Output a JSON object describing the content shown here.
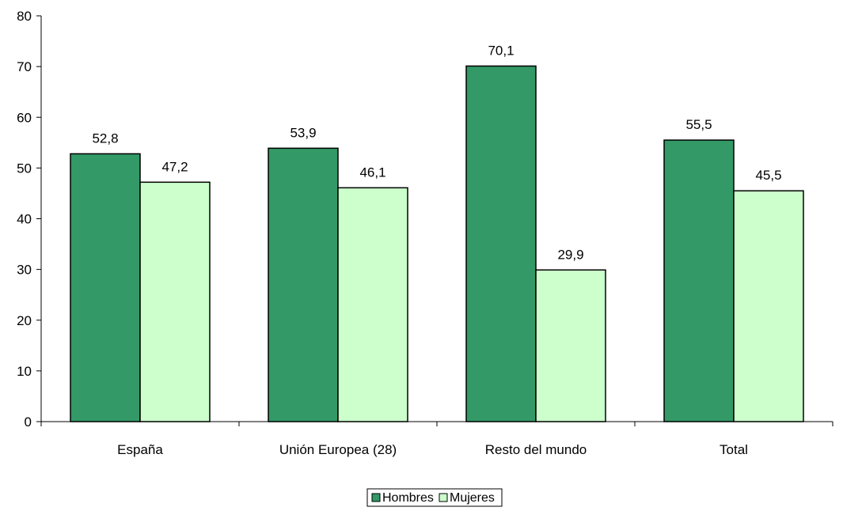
{
  "chart_data": {
    "type": "bar",
    "categories": [
      "España",
      "Unión Europea (28)",
      "Resto del mundo",
      "Total"
    ],
    "series": [
      {
        "name": "Hombres",
        "values": [
          52.8,
          53.9,
          70.1,
          55.5
        ],
        "color": "#339966"
      },
      {
        "name": "Mujeres",
        "values": [
          47.2,
          46.1,
          29.9,
          45.5
        ],
        "color": "#CCFFCC"
      }
    ],
    "data_labels": [
      [
        "52,8",
        "53,9",
        "70,1",
        "55,5"
      ],
      [
        "47,2",
        "46,1",
        "29,9",
        "45,5"
      ]
    ],
    "yticks": [
      "0",
      "10",
      "20",
      "30",
      "40",
      "50",
      "60",
      "70",
      "80"
    ],
    "ylim": [
      0,
      80
    ],
    "title": "",
    "xlabel": "",
    "ylabel": "",
    "grid": false,
    "legend_position": "bottom"
  }
}
